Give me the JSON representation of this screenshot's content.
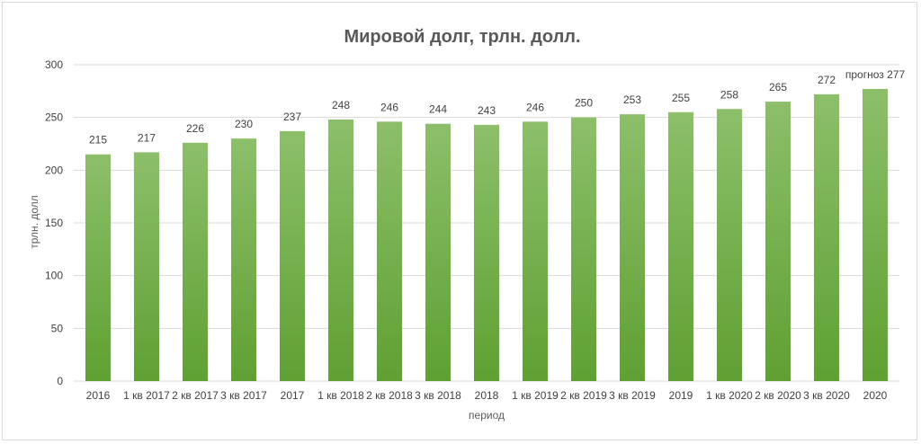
{
  "chart_data": {
    "type": "bar",
    "title": "Мировой долг, трлн. долл.",
    "xlabel": "период",
    "ylabel": "трлн. долл",
    "ylim": [
      0,
      300
    ],
    "yticks": [
      0,
      50,
      100,
      150,
      200,
      250,
      300
    ],
    "grid": true,
    "legend": "none",
    "categories": [
      "2016",
      "1 кв 2017",
      "2 кв 2017",
      "3 кв 2017",
      "2017",
      "1 кв 2018",
      "2 кв 2018",
      "3 кв 2018",
      "2018",
      "1 кв 2019",
      "2 кв 2019",
      "3 кв 2019",
      "2019",
      "1 кв 2020",
      "2 кв 2020",
      "3 кв 2020",
      "2020"
    ],
    "values": [
      215,
      217,
      226,
      230,
      237,
      248,
      246,
      244,
      243,
      246,
      250,
      253,
      255,
      258,
      265,
      272,
      277
    ],
    "data_labels": [
      "215",
      "217",
      "226",
      "230",
      "237",
      "248",
      "246",
      "244",
      "243",
      "246",
      "250",
      "253",
      "255",
      "258",
      "265",
      "272",
      "прогноз 277"
    ],
    "colors": {
      "bar_top": "#8dbf6a",
      "bar_bottom": "#5fa033"
    }
  }
}
